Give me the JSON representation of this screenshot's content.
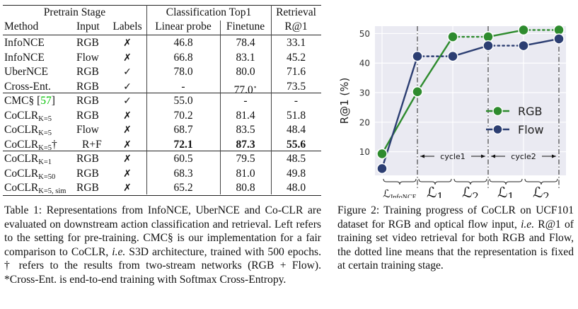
{
  "table": {
    "group_headers": [
      "Pretrain Stage",
      "Classification Top1",
      "Retrieval"
    ],
    "column_headers": [
      "Method",
      "Input",
      "Labels",
      "Linear probe",
      "Finetune",
      "R@1"
    ],
    "rows": [
      {
        "method": "InfoNCE",
        "method_sub": "",
        "method_suffix": "",
        "input": "RGB",
        "labels": "✗",
        "linear": "46.8",
        "finetune": "78.4",
        "r1": "33.1"
      },
      {
        "method": "InfoNCE",
        "method_sub": "",
        "method_suffix": "",
        "input": "Flow",
        "labels": "✗",
        "linear": "66.8",
        "finetune": "83.1",
        "r1": "45.2"
      },
      {
        "method": "UberNCE",
        "method_sub": "",
        "method_suffix": "",
        "input": "RGB",
        "labels": "✓",
        "linear": "78.0",
        "finetune": "80.0",
        "r1": "71.6"
      },
      {
        "method": "Cross-Ent.",
        "method_sub": "",
        "method_suffix": "",
        "input": "RGB",
        "labels": "✓",
        "linear": "-",
        "finetune": "77.0*",
        "r1": "73.5"
      },
      {
        "method": "CMC§ ",
        "method_sub": "",
        "method_suffix": "",
        "citation": "57",
        "input": "RGB",
        "labels": "✓",
        "linear": "55.0",
        "finetune": "-",
        "r1": "-"
      },
      {
        "method": "CoCLR",
        "method_sub": "K=5",
        "method_suffix": "",
        "input": "RGB",
        "labels": "✗",
        "linear": "70.2",
        "finetune": "81.4",
        "r1": "51.8"
      },
      {
        "method": "CoCLR",
        "method_sub": "K=5",
        "method_suffix": "",
        "input": "Flow",
        "labels": "✗",
        "linear": "68.7",
        "finetune": "83.5",
        "r1": "48.4"
      },
      {
        "method": "CoCLR",
        "method_sub": "K=5",
        "method_suffix": "†",
        "input": "R+F",
        "labels": "✗",
        "linear": "72.1",
        "finetune": "87.3",
        "r1": "55.6",
        "bold": true
      },
      {
        "method": "CoCLR",
        "method_sub": "K=1",
        "method_suffix": "",
        "input": "RGB",
        "labels": "✗",
        "linear": "60.5",
        "finetune": "79.5",
        "r1": "48.5"
      },
      {
        "method": "CoCLR",
        "method_sub": "K=50",
        "method_suffix": "",
        "input": "RGB",
        "labels": "✗",
        "linear": "68.3",
        "finetune": "81.0",
        "r1": "49.8"
      },
      {
        "method": "CoCLR",
        "method_sub": "K=5, sim",
        "method_suffix": "",
        "input": "RGB",
        "labels": "✗",
        "linear": "65.2",
        "finetune": "80.8",
        "r1": "48.0"
      }
    ],
    "caption": "Table 1: Representations from InfoNCE, UberNCE and Co-CLR are evaluated on downstream action classification and retrieval. Left refers to the setting for pre-training. CMC§ is our implementation for a fair comparison to CoCLR, i.e. S3D architecture, trained with 500 epochs. † refers to the results from two-stream networks (RGB + Flow). *Cross-Ent. is end-to-end training with Softmax Cross-Entropy."
  },
  "figure": {
    "caption": "Figure 2:   Training progress of CoCLR on UCF101 dataset for RGB and optical flow input, i.e. R@1 of training set video retrieval for both RGB and Flow, the dotted line means that the representation is fixed at certain training stage."
  },
  "chart_data": {
    "type": "line",
    "title": "",
    "xlabel": "",
    "ylabel": "R@1 (%)",
    "ylim": [
      2,
      52.5
    ],
    "yticks": [
      10,
      20,
      30,
      40,
      50
    ],
    "grid": true,
    "legend": "center-right",
    "x": [
      0,
      1,
      2,
      3,
      4,
      5
    ],
    "series": [
      {
        "name": "RGB",
        "color": "#2e8b2e",
        "values": [
          9.3,
          30.3,
          48.9,
          48.9,
          51.2,
          51.2
        ],
        "dotted_segments": [
          2,
          4
        ]
      },
      {
        "name": "Flow",
        "color": "#2c3e72",
        "values": [
          4.3,
          42.3,
          42.3,
          45.9,
          45.9,
          48.2
        ],
        "dotted_segments": [
          1,
          3
        ]
      }
    ],
    "stage_labels": [
      {
        "main": "ℒ",
        "sub": "InfoNCE"
      },
      {
        "main": "ℒ",
        "sub": "1"
      },
      {
        "main": "ℒ",
        "sub": "2"
      },
      {
        "main": "ℒ",
        "sub": "1"
      },
      {
        "main": "ℒ",
        "sub": "2"
      }
    ],
    "cycle_annotations": [
      "cycle1",
      "cycle2"
    ],
    "stage_boundaries": [
      1,
      3,
      5
    ]
  }
}
